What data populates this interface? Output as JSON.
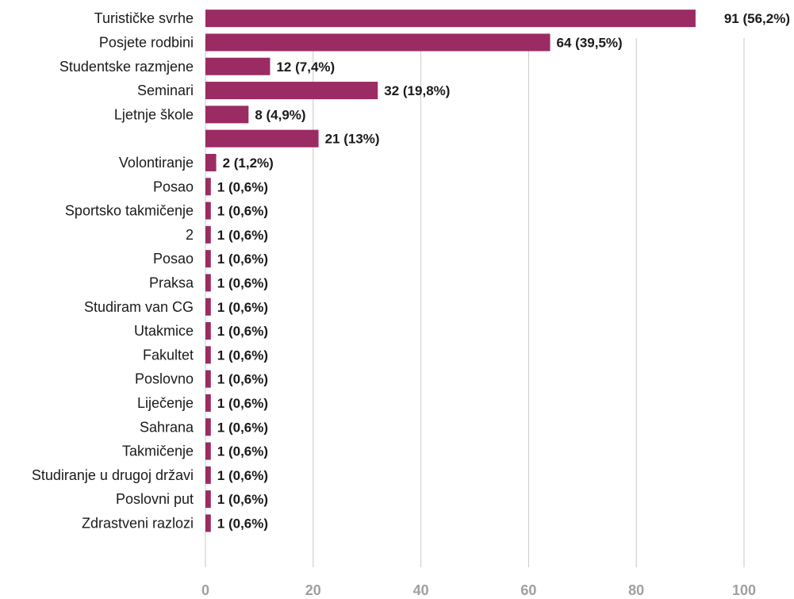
{
  "chart_data": {
    "type": "bar",
    "orientation": "horizontal",
    "categories": [
      "Turističke svrhe",
      "Posjete rodbini",
      "Studentske razmjene",
      "Seminari",
      "Ljetnje škole",
      "",
      "Volontiranje",
      "Posao",
      "Sportsko takmičenje",
      "2",
      "Posao",
      "Praksa",
      "Studiram van CG",
      "Utakmice",
      "Fakultet",
      "Poslovno",
      "Liječenje",
      "Sahrana",
      "Takmičenje",
      "Studiranje u drugoj državi",
      "Poslovni put",
      "Zdrastveni razlozi"
    ],
    "values": [
      91,
      64,
      12,
      32,
      8,
      21,
      2,
      1,
      1,
      1,
      1,
      1,
      1,
      1,
      1,
      1,
      1,
      1,
      1,
      1,
      1,
      1
    ],
    "data_labels": [
      "91 (56,2%)",
      "64 (39,5%)",
      "12 (7,4%)",
      "32 (19,8%)",
      "8 (4,9%)",
      "21 (13%)",
      "2 (1,2%)",
      "1 (0,6%)",
      "1 (0,6%)",
      "1 (0,6%)",
      "1 (0,6%)",
      "1 (0,6%)",
      "1 (0,6%)",
      "1 (0,6%)",
      "1 (0,6%)",
      "1 (0,6%)",
      "1 (0,6%)",
      "1 (0,6%)",
      "1 (0,6%)",
      "1 (0,6%)",
      "1 (0,6%)",
      "1 (0,6%)"
    ],
    "xlim": [
      0,
      100
    ],
    "xticks": [
      0,
      20,
      40,
      60,
      80,
      100
    ],
    "grid": true,
    "bar_color": "#9b2b63",
    "title": "",
    "xlabel": "",
    "ylabel": ""
  }
}
